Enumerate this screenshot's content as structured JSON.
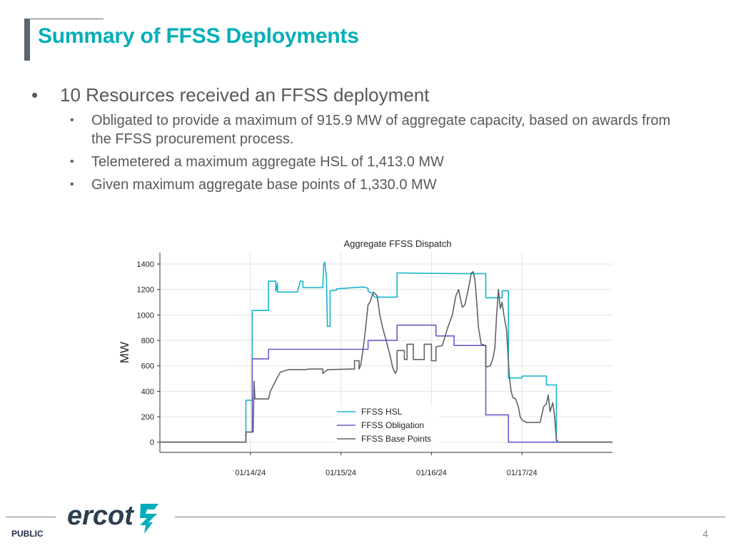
{
  "slide": {
    "title": "Summary of FFSS Deployments",
    "bullet_main": "10 Resources received an FFSS deployment",
    "sub_bullets": [
      "Obligated to provide a maximum of 915.9 MW of aggregate capacity, based on awards from the FFSS procurement process.",
      "Telemetered a maximum aggregate HSL of 1,413.0 MW",
      "Given maximum aggregate base points of 1,330.0 MW"
    ],
    "bullet_symbol": "•"
  },
  "footer": {
    "classification": "PUBLIC",
    "page_number": "4",
    "logo_text": "ercot"
  },
  "colors": {
    "title": "#00aeb9",
    "hsl": "#17b3c9",
    "obligation": "#6a5acd",
    "base_points": "#5f6368",
    "logo": "#2c3e50",
    "logo_accent": "#00aeb9"
  },
  "chart_data": {
    "type": "line",
    "title": "Aggregate FFSS Dispatch",
    "xlabel": "",
    "ylabel": "MW",
    "x_unit": "days since 01/13/24 00:00",
    "xlim": [
      0,
      5
    ],
    "ylim": [
      -80,
      1490
    ],
    "yticks": [
      0,
      200,
      400,
      600,
      800,
      1000,
      1200,
      1400
    ],
    "xticks": [
      {
        "x": 1,
        "label": "01/14/24"
      },
      {
        "x": 2,
        "label": "01/15/24"
      },
      {
        "x": 3,
        "label": "01/16/24"
      },
      {
        "x": 4,
        "label": "01/17/24"
      }
    ],
    "grid": true,
    "legend_position": "lower-center",
    "series": [
      {
        "name": "FFSS HSL",
        "color": "#17b3c9",
        "points": [
          [
            0,
            0
          ],
          [
            0.95,
            0
          ],
          [
            0.95,
            330
          ],
          [
            1.02,
            330
          ],
          [
            1.02,
            1035
          ],
          [
            1.2,
            1035
          ],
          [
            1.2,
            1265
          ],
          [
            1.28,
            1265
          ],
          [
            1.28,
            1185
          ],
          [
            1.3,
            1250
          ],
          [
            1.3,
            1180
          ],
          [
            1.52,
            1180
          ],
          [
            1.55,
            1265
          ],
          [
            1.58,
            1265
          ],
          [
            1.58,
            1215
          ],
          [
            1.8,
            1215
          ],
          [
            1.81,
            1400
          ],
          [
            1.82,
            1415
          ],
          [
            1.84,
            1300
          ],
          [
            1.85,
            910
          ],
          [
            1.88,
            910
          ],
          [
            1.88,
            1190
          ],
          [
            1.95,
            1195
          ],
          [
            1.95,
            1205
          ],
          [
            2.25,
            1220
          ],
          [
            2.3,
            1210
          ],
          [
            2.3,
            1185
          ],
          [
            2.35,
            1170
          ],
          [
            2.37,
            1140
          ],
          [
            2.62,
            1140
          ],
          [
            2.62,
            1330
          ],
          [
            3.25,
            1325
          ],
          [
            3.6,
            1325
          ],
          [
            3.6,
            1135
          ],
          [
            3.78,
            1135
          ],
          [
            3.78,
            1190
          ],
          [
            3.85,
            1190
          ],
          [
            3.85,
            505
          ],
          [
            4.0,
            505
          ],
          [
            4.0,
            520
          ],
          [
            4.27,
            520
          ],
          [
            4.27,
            450
          ],
          [
            4.38,
            450
          ],
          [
            4.38,
            0
          ],
          [
            5,
            0
          ]
        ]
      },
      {
        "name": "FFSS Obligation",
        "color": "#6a5acd",
        "points": [
          [
            0,
            0
          ],
          [
            0.95,
            0
          ],
          [
            0.95,
            80
          ],
          [
            1.02,
            80
          ],
          [
            1.02,
            655
          ],
          [
            1.2,
            655
          ],
          [
            1.2,
            730
          ],
          [
            2.3,
            730
          ],
          [
            2.3,
            800
          ],
          [
            2.62,
            800
          ],
          [
            2.62,
            920
          ],
          [
            3.05,
            920
          ],
          [
            3.05,
            835
          ],
          [
            3.25,
            835
          ],
          [
            3.25,
            760
          ],
          [
            3.6,
            760
          ],
          [
            3.6,
            215
          ],
          [
            3.85,
            215
          ],
          [
            3.85,
            0
          ],
          [
            5,
            0
          ]
        ]
      },
      {
        "name": "FFSS Base Points",
        "color": "#5f6368",
        "points": [
          [
            0,
            0
          ],
          [
            0.95,
            0
          ],
          [
            0.95,
            80
          ],
          [
            1.03,
            80
          ],
          [
            1.04,
            480
          ],
          [
            1.05,
            340
          ],
          [
            1.2,
            340
          ],
          [
            1.22,
            400
          ],
          [
            1.27,
            470
          ],
          [
            1.33,
            550
          ],
          [
            1.42,
            570
          ],
          [
            1.6,
            570
          ],
          [
            1.65,
            575
          ],
          [
            1.8,
            575
          ],
          [
            1.8,
            540
          ],
          [
            1.85,
            570
          ],
          [
            2.1,
            575
          ],
          [
            2.15,
            575
          ],
          [
            2.15,
            640
          ],
          [
            2.2,
            640
          ],
          [
            2.2,
            575
          ],
          [
            2.22,
            610
          ],
          [
            2.25,
            760
          ],
          [
            2.27,
            880
          ],
          [
            2.3,
            1080
          ],
          [
            2.32,
            1100
          ],
          [
            2.36,
            1180
          ],
          [
            2.4,
            1150
          ],
          [
            2.43,
            1000
          ],
          [
            2.46,
            900
          ],
          [
            2.5,
            800
          ],
          [
            2.55,
            660
          ],
          [
            2.57,
            590
          ],
          [
            2.6,
            540
          ],
          [
            2.62,
            570
          ],
          [
            2.62,
            720
          ],
          [
            2.7,
            720
          ],
          [
            2.7,
            650
          ],
          [
            2.73,
            650
          ],
          [
            2.73,
            770
          ],
          [
            2.8,
            770
          ],
          [
            2.8,
            650
          ],
          [
            2.92,
            650
          ],
          [
            2.92,
            770
          ],
          [
            3.0,
            770
          ],
          [
            3.0,
            640
          ],
          [
            3.05,
            640
          ],
          [
            3.05,
            750
          ],
          [
            3.12,
            760
          ],
          [
            3.18,
            900
          ],
          [
            3.23,
            1000
          ],
          [
            3.27,
            1150
          ],
          [
            3.3,
            1200
          ],
          [
            3.34,
            1060
          ],
          [
            3.37,
            1080
          ],
          [
            3.4,
            1180
          ],
          [
            3.42,
            1250
          ],
          [
            3.44,
            1330
          ],
          [
            3.46,
            1340
          ],
          [
            3.48,
            1280
          ],
          [
            3.5,
            1100
          ],
          [
            3.52,
            900
          ],
          [
            3.55,
            770
          ],
          [
            3.6,
            760
          ],
          [
            3.6,
            590
          ],
          [
            3.65,
            600
          ],
          [
            3.68,
            660
          ],
          [
            3.7,
            740
          ],
          [
            3.72,
            1000
          ],
          [
            3.74,
            1200
          ],
          [
            3.76,
            1050
          ],
          [
            3.78,
            1100
          ],
          [
            3.8,
            1000
          ],
          [
            3.83,
            880
          ],
          [
            3.86,
            520
          ],
          [
            3.88,
            400
          ],
          [
            3.9,
            350
          ],
          [
            3.93,
            340
          ],
          [
            3.96,
            280
          ],
          [
            3.98,
            200
          ],
          [
            4.0,
            175
          ],
          [
            4.05,
            155
          ],
          [
            4.2,
            155
          ],
          [
            4.24,
            280
          ],
          [
            4.27,
            300
          ],
          [
            4.29,
            370
          ],
          [
            4.31,
            240
          ],
          [
            4.34,
            310
          ],
          [
            4.36,
            210
          ],
          [
            4.38,
            20
          ],
          [
            4.4,
            0
          ],
          [
            5,
            0
          ]
        ]
      }
    ]
  }
}
